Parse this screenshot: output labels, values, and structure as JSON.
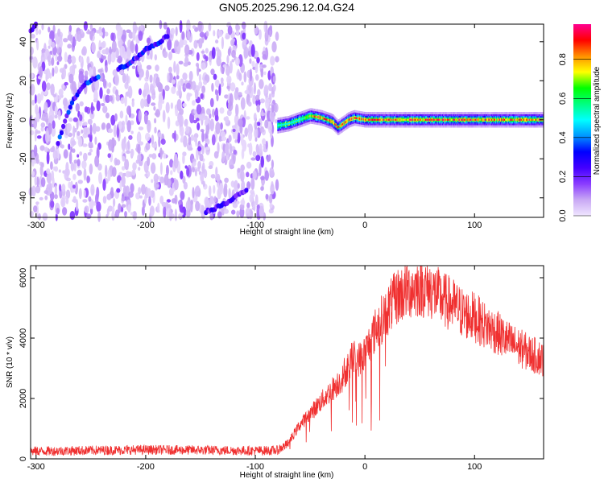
{
  "title": "GN05.2025.296.12.04.G24",
  "chart_data": [
    {
      "type": "heatmap",
      "name": "spectrogram",
      "xlabel": "Height of straight line (km)",
      "ylabel": "Frequency (Hz)",
      "xlim": [
        -305,
        163
      ],
      "ylim": [
        -50,
        49
      ],
      "xticks": [
        -300,
        -200,
        -100,
        0,
        100
      ],
      "yticks": [
        -40,
        -20,
        0,
        20,
        40
      ],
      "colorbar": {
        "label": "Normalized spectral amplitude",
        "range": [
          0,
          0.98
        ],
        "ticks": [
          0.0,
          0.2,
          0.4,
          0.6,
          0.8
        ],
        "colormap": [
          "#f0e6ff",
          "#c8a8f4",
          "#8a3cff",
          "#4400ff",
          "#0000ff",
          "#0096ff",
          "#00ffff",
          "#00ff80",
          "#00ff00",
          "#ffff00",
          "#ff9000",
          "#ff0000",
          "#ff0090"
        ]
      },
      "noise_region": {
        "x": [
          -305,
          -80
        ],
        "y": [
          -50,
          49
        ]
      },
      "tracks": [
        {
          "x": [
            -280,
            -272,
            -265,
            -258,
            -250,
            -242
          ],
          "y": [
            -12,
            2,
            11,
            17,
            20,
            23
          ],
          "peak": 0.4
        },
        {
          "x": [
            -225,
            -218,
            -210,
            -200,
            -190,
            -180
          ],
          "y": [
            26,
            28,
            31,
            36,
            39,
            43
          ],
          "peak": 0.38
        },
        {
          "x": [
            -145,
            -135,
            -125,
            -115,
            -108
          ],
          "y": [
            -47,
            -45,
            -42,
            -38,
            -36
          ],
          "peak": 0.32
        },
        {
          "x": [
            -305,
            -300
          ],
          "y": [
            45,
            49
          ],
          "peak": 0.25
        }
      ],
      "signal_band": {
        "x": [
          -80,
          -70,
          -60,
          -50,
          -40,
          -30,
          -25,
          -20,
          -15,
          -10,
          0,
          20,
          40,
          60,
          80,
          100,
          120,
          140,
          163
        ],
        "y": [
          -3,
          -2,
          0,
          2,
          1,
          -1,
          -4,
          -2,
          0,
          1,
          0,
          0,
          0,
          0,
          0,
          0,
          0,
          0,
          0
        ],
        "peak": 0.98
      }
    },
    {
      "type": "line",
      "name": "snr",
      "xlabel": "Height of straight line (km)",
      "ylabel": "SNR (10 * v/v)",
      "xlim": [
        -305,
        163
      ],
      "ylim": [
        0,
        6400
      ],
      "xticks": [
        -300,
        -200,
        -100,
        0,
        100
      ],
      "yticks": [
        0,
        2000,
        4000,
        6000
      ],
      "color": "#f03030",
      "envelope": {
        "x": [
          -305,
          -250,
          -200,
          -150,
          -100,
          -80,
          -70,
          -60,
          -50,
          -40,
          -30,
          -20,
          -12,
          -5,
          0,
          10,
          20,
          30,
          40,
          50,
          60,
          70,
          80,
          90,
          100,
          110,
          120,
          130,
          140,
          150,
          163
        ],
        "y": [
          250,
          280,
          300,
          290,
          270,
          280,
          500,
          1100,
          1500,
          1900,
          2300,
          2700,
          3400,
          3300,
          3500,
          4300,
          4900,
          5400,
          5600,
          5700,
          5600,
          5300,
          5100,
          4800,
          4700,
          4400,
          4200,
          3900,
          3700,
          3500,
          3300
        ]
      },
      "noise_amplitude": 160
    }
  ]
}
